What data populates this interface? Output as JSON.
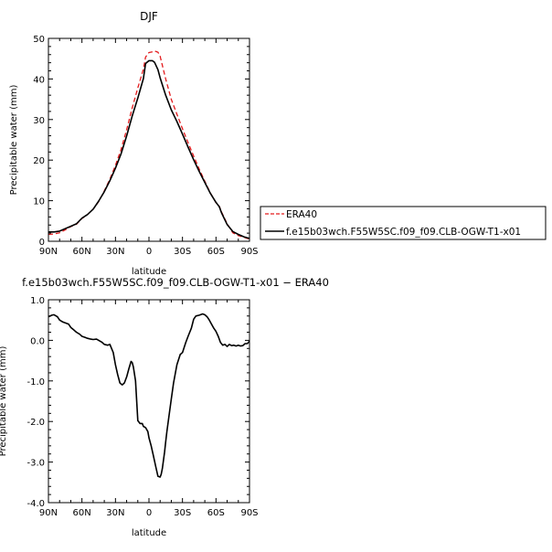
{
  "chart_data": [
    {
      "type": "line",
      "title": "DJF",
      "xlabel": "latitude",
      "ylabel": "Precipitable water  (mm)",
      "xlim": [
        90,
        -90
      ],
      "ylim": [
        0,
        50
      ],
      "x_ticks": [
        90,
        60,
        30,
        0,
        -30,
        -60,
        -90
      ],
      "x_tick_labels": [
        "90N",
        "60N",
        "30N",
        "0",
        "30S",
        "60S",
        "90S"
      ],
      "y_ticks": [
        0,
        10,
        20,
        30,
        40,
        50
      ],
      "y_tick_labels": [
        "0",
        "10",
        "20",
        "30",
        "40",
        "50"
      ],
      "legend_position": "right",
      "series": [
        {
          "name": "ERA40",
          "style": "dashed",
          "color": "#e31a1c",
          "x": [
            90,
            85,
            80,
            75,
            70,
            65,
            60,
            55,
            50,
            45,
            40,
            35,
            30,
            25,
            20,
            15,
            10,
            5,
            3,
            0,
            -3,
            -5,
            -8,
            -10,
            -15,
            -20,
            -25,
            -30,
            -35,
            -40,
            -45,
            -50,
            -55,
            -60,
            -63,
            -65,
            -70,
            -75,
            -80,
            -85,
            -90
          ],
          "y": [
            1.7,
            1.8,
            2.1,
            2.8,
            3.6,
            4.2,
            5.6,
            6.6,
            7.9,
            9.8,
            12.4,
            15.3,
            18.7,
            22.6,
            27.5,
            32.9,
            37.8,
            42.4,
            45.4,
            46.5,
            46.7,
            46.9,
            46.6,
            45.6,
            40.0,
            35.0,
            31.3,
            27.7,
            24.3,
            21.0,
            17.8,
            14.8,
            11.9,
            9.5,
            8.6,
            7.2,
            4.3,
            2.1,
            1.4,
            1.0,
            0.5
          ]
        },
        {
          "name": "f.e15b03wch.F55W5SC.f09_f09.CLB-OGW-T1-x01",
          "style": "solid",
          "color": "#000000",
          "x": [
            90,
            85,
            80,
            75,
            70,
            65,
            60,
            55,
            50,
            45,
            40,
            35,
            30,
            25,
            20,
            15,
            10,
            5,
            3,
            0,
            -3,
            -5,
            -8,
            -10,
            -15,
            -20,
            -25,
            -30,
            -35,
            -40,
            -45,
            -50,
            -55,
            -60,
            -63,
            -65,
            -70,
            -75,
            -80,
            -85,
            -90
          ],
          "y": [
            2.3,
            2.3,
            2.5,
            3.1,
            3.7,
            4.3,
            5.7,
            6.6,
            7.9,
            9.9,
            12.2,
            14.9,
            18.0,
            21.5,
            26.0,
            30.9,
            35.3,
            40.1,
            43.8,
            44.5,
            44.5,
            44.1,
            42.3,
            40.3,
            36.0,
            32.4,
            29.5,
            26.4,
            23.2,
            20.1,
            17.2,
            14.5,
            11.8,
            9.6,
            8.5,
            7.0,
            4.1,
            2.4,
            1.7,
            1.1,
            0.7
          ]
        }
      ]
    },
    {
      "type": "line",
      "title": "f.e15b03wch.F55W5SC.f09_f09.CLB-OGW-T1-x01  −  ERA40",
      "xlabel": "latitude",
      "ylabel": "Precipitable water  (mm)",
      "xlim": [
        90,
        -90
      ],
      "ylim": [
        -4.0,
        1.0
      ],
      "x_ticks": [
        90,
        60,
        30,
        0,
        -30,
        -60,
        -90
      ],
      "x_tick_labels": [
        "90N",
        "60N",
        "30N",
        "0",
        "30S",
        "60S",
        "90S"
      ],
      "y_ticks": [
        -4.0,
        -3.0,
        -2.0,
        -1.0,
        0.0,
        1.0
      ],
      "y_tick_labels": [
        "-4.0",
        "-3.0",
        "-2.0",
        "-1.0",
        "0.0",
        "1.0"
      ],
      "series": [
        {
          "style": "solid",
          "color": "#000000",
          "x": [
            90,
            87,
            85,
            82,
            80,
            77,
            75,
            72,
            70,
            67,
            65,
            62,
            60,
            57,
            55,
            52,
            50,
            47,
            45,
            42,
            40,
            37,
            35,
            32,
            30,
            28,
            26,
            24,
            22,
            20,
            18,
            16,
            15,
            14,
            12,
            10,
            8,
            6,
            5,
            3,
            1,
            0,
            -2,
            -4,
            -6,
            -8,
            -10,
            -11,
            -12,
            -13,
            -14,
            -15,
            -16,
            -18,
            -20,
            -22,
            -25,
            -28,
            -30,
            -33,
            -35,
            -38,
            -40,
            -42,
            -45,
            -48,
            -50,
            -52,
            -54,
            -56,
            -58,
            -60,
            -62,
            -64,
            -66,
            -68,
            -70,
            -72,
            -74,
            -76,
            -78,
            -80,
            -82,
            -84,
            -86,
            -88,
            -90
          ],
          "y": [
            0.58,
            0.62,
            0.63,
            0.58,
            0.5,
            0.45,
            0.43,
            0.4,
            0.32,
            0.25,
            0.2,
            0.15,
            0.1,
            0.07,
            0.05,
            0.03,
            0.02,
            0.03,
            0.0,
            -0.05,
            -0.1,
            -0.12,
            -0.1,
            -0.3,
            -0.6,
            -0.85,
            -1.05,
            -1.1,
            -1.05,
            -0.9,
            -0.7,
            -0.52,
            -0.55,
            -0.65,
            -1.0,
            -1.98,
            -2.05,
            -2.05,
            -2.12,
            -2.15,
            -2.25,
            -2.4,
            -2.6,
            -2.85,
            -3.1,
            -3.35,
            -3.37,
            -3.3,
            -3.15,
            -2.95,
            -2.75,
            -2.5,
            -2.25,
            -1.85,
            -1.45,
            -1.05,
            -0.6,
            -0.35,
            -0.3,
            -0.05,
            0.1,
            0.3,
            0.52,
            0.6,
            0.62,
            0.65,
            0.63,
            0.58,
            0.5,
            0.4,
            0.3,
            0.22,
            0.1,
            -0.05,
            -0.12,
            -0.1,
            -0.15,
            -0.1,
            -0.13,
            -0.12,
            -0.14,
            -0.12,
            -0.14,
            -0.13,
            -0.08,
            -0.08,
            -0.02
          ]
        }
      ]
    }
  ]
}
